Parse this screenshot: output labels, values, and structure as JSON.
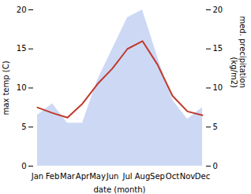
{
  "chart_data": {
    "type": "line",
    "categories": [
      "Jan",
      "Feb",
      "Mar",
      "Apr",
      "May",
      "Jun",
      "Jul",
      "Aug",
      "Sep",
      "Oct",
      "Nov",
      "Dec"
    ],
    "xlabel": "date (month)",
    "ylabel": "max temp (C)",
    "y2label": "med. precipitation\n(kg/m2)",
    "series": [
      {
        "type": "area",
        "axis": "y2",
        "color": "#b8c9f0",
        "values": [
          6.5,
          8.0,
          5.5,
          5.5,
          11.0,
          15.0,
          19.0,
          20.0,
          14.0,
          8.5,
          6.0,
          7.5
        ]
      },
      {
        "type": "line",
        "color": "#c0392b",
        "values": [
          7.5,
          6.8,
          6.2,
          8.0,
          10.5,
          12.5,
          15.0,
          16.0,
          13.0,
          9.0,
          7.0,
          6.5
        ]
      }
    ],
    "ylim": [
      0,
      20
    ],
    "yticks": [
      0,
      5,
      10,
      15,
      20
    ],
    "y2lim": [
      0,
      20
    ],
    "y2ticks": [
      0,
      5,
      10,
      15,
      20
    ],
    "grid": false
  }
}
